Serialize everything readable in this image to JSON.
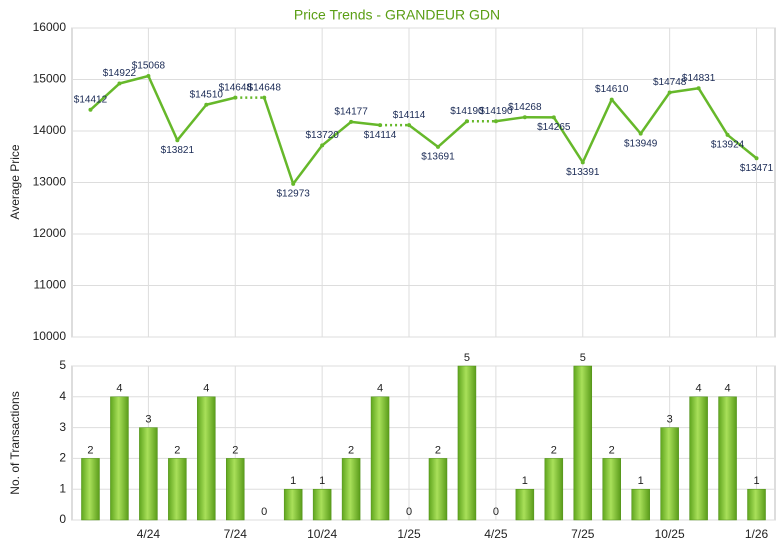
{
  "chart_data": [
    {
      "type": "line",
      "title": "Price Trends - GRANDEUR GDN",
      "y_label": "Average Price",
      "color": "#66b82a",
      "values": [
        14412,
        14922,
        15068,
        13821,
        14510,
        14648,
        14648,
        12973,
        13720,
        14177,
        14114,
        14114,
        13691,
        14190,
        14190,
        14268,
        14265,
        13391,
        14610,
        13949,
        14748,
        14831,
        13924,
        13471
      ],
      "value_labels": [
        "$14412",
        "$14922",
        "$15068",
        "$13821",
        "$14510",
        "$14648",
        "$14648",
        "$12973",
        "$13720",
        "$14177",
        "$14114",
        "$14114",
        "$13691",
        "$14190",
        "$14190",
        "$14268",
        "$14265",
        "$13391",
        "$14610",
        "$13949",
        "$14748",
        "$14831",
        "$13924",
        "$13471"
      ],
      "ylim": [
        10000,
        16000
      ],
      "yticks": [
        10000,
        11000,
        12000,
        13000,
        14000,
        15000,
        16000
      ],
      "grid": true
    },
    {
      "type": "bar",
      "y_label": "No. of Transactions",
      "color": "#7cc13a",
      "categories": [
        null,
        null,
        "4/24",
        null,
        null,
        "7/24",
        null,
        null,
        "10/24",
        null,
        null,
        "1/25",
        null,
        null,
        "4/25",
        null,
        null,
        "7/25",
        null,
        null,
        "10/25",
        null,
        null,
        "1/26"
      ],
      "values": [
        2,
        4,
        3,
        2,
        4,
        2,
        0,
        1,
        1,
        2,
        4,
        0,
        2,
        5,
        0,
        1,
        2,
        5,
        2,
        1,
        3,
        4,
        4,
        1
      ],
      "ylim": [
        0,
        5
      ],
      "yticks": [
        0,
        1,
        2,
        3,
        4,
        5
      ],
      "grid": true
    }
  ]
}
